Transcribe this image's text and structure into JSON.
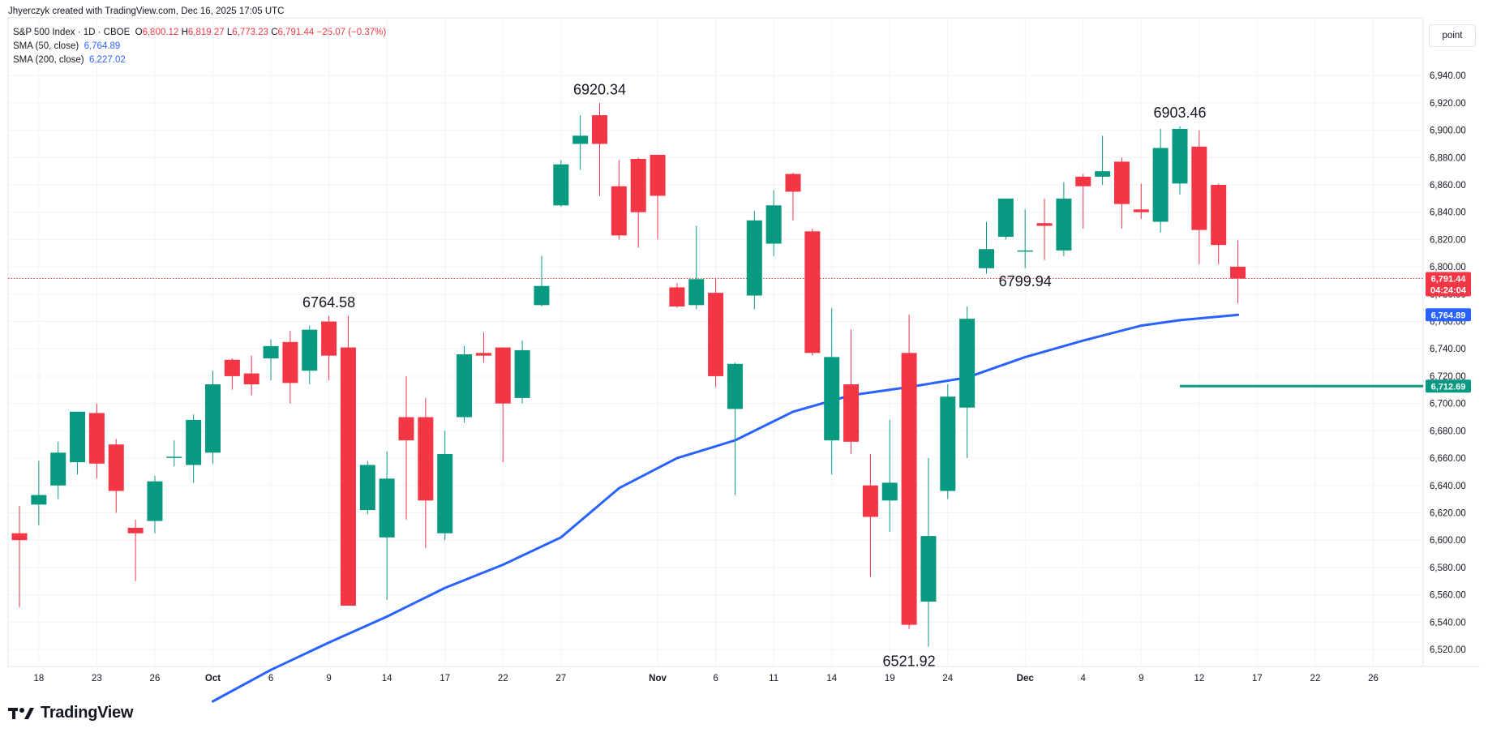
{
  "header": {
    "credit": "Jhyerczyk created with TradingView.com, Dec 16, 2025 17:05 UTC",
    "symbol": "S&P 500 Index · 1D · CBOE",
    "ohlc": {
      "open_label": "O",
      "open": "6,800.12",
      "high_label": "H",
      "high": "6,819.27",
      "low_label": "L",
      "low": "6,773.23",
      "close_label": "C",
      "close": "6,791.44",
      "change": "−25.07 (−0.37%)"
    },
    "sma50": {
      "label": "SMA (50, close)",
      "value": "6,764.89"
    },
    "sma200": {
      "label": "SMA (200, close)",
      "value": "6,227.02"
    }
  },
  "scale_mode_button": "point",
  "brand": "TradingView",
  "colors": {
    "up": "#089981",
    "down": "#f23645",
    "sma50": "#2962ff",
    "support_line": "#089981",
    "grid": "#f0f3fa"
  },
  "chart_data": {
    "type": "candlestick",
    "y_axis_position": "right",
    "ylim": [
      6482,
      6952
    ],
    "y_ticks": [
      "6,500.00",
      "6,520.00",
      "6,540.00",
      "6,560.00",
      "6,580.00",
      "6,600.00",
      "6,620.00",
      "6,640.00",
      "6,660.00",
      "6,680.00",
      "6,700.00",
      "6,720.00",
      "6,740.00",
      "6,760.00",
      "6,780.00",
      "6,800.00",
      "6,820.00",
      "6,840.00",
      "6,860.00",
      "6,880.00",
      "6,900.00",
      "6,920.00",
      "6,940.00"
    ],
    "x_ticks": [
      {
        "index": 1,
        "label": "18"
      },
      {
        "index": 4,
        "label": "23"
      },
      {
        "index": 7,
        "label": "26"
      },
      {
        "index": 10,
        "label": "Oct"
      },
      {
        "index": 13,
        "label": "6"
      },
      {
        "index": 16,
        "label": "9"
      },
      {
        "index": 19,
        "label": "14"
      },
      {
        "index": 22,
        "label": "17"
      },
      {
        "index": 25,
        "label": "22"
      },
      {
        "index": 28,
        "label": "27"
      },
      {
        "index": 33,
        "label": "Nov"
      },
      {
        "index": 36,
        "label": "6"
      },
      {
        "index": 39,
        "label": "11"
      },
      {
        "index": 42,
        "label": "14"
      },
      {
        "index": 45,
        "label": "19"
      },
      {
        "index": 48,
        "label": "24"
      },
      {
        "index": 52,
        "label": "Dec"
      },
      {
        "index": 55,
        "label": "4"
      },
      {
        "index": 58,
        "label": "9"
      },
      {
        "index": 61,
        "label": "12"
      },
      {
        "index": 64,
        "label": "17"
      },
      {
        "index": 67,
        "label": "22"
      },
      {
        "index": 70,
        "label": "26"
      }
    ],
    "candles": [
      {
        "o": 6605,
        "h": 6625,
        "l": 6551,
        "c": 6600
      },
      {
        "o": 6626,
        "h": 6658,
        "l": 6611,
        "c": 6633
      },
      {
        "o": 6640,
        "h": 6672,
        "l": 6630,
        "c": 6664
      },
      {
        "o": 6657,
        "h": 6694,
        "l": 6648,
        "c": 6694
      },
      {
        "o": 6693,
        "h": 6700,
        "l": 6645,
        "c": 6656
      },
      {
        "o": 6670,
        "h": 6674,
        "l": 6620,
        "c": 6636
      },
      {
        "o": 6609,
        "h": 6615,
        "l": 6570,
        "c": 6605
      },
      {
        "o": 6614,
        "h": 6647,
        "l": 6605,
        "c": 6643
      },
      {
        "o": 6661,
        "h": 6673,
        "l": 6654,
        "c": 6661
      },
      {
        "o": 6655,
        "h": 6692,
        "l": 6642,
        "c": 6688
      },
      {
        "o": 6664,
        "h": 6724,
        "l": 6656,
        "c": 6714
      },
      {
        "o": 6732,
        "h": 6733,
        "l": 6710,
        "c": 6720
      },
      {
        "o": 6722,
        "h": 6735,
        "l": 6706,
        "c": 6714
      },
      {
        "o": 6733,
        "h": 6747,
        "l": 6717,
        "c": 6742
      },
      {
        "o": 6745,
        "h": 6753,
        "l": 6700,
        "c": 6715
      },
      {
        "o": 6724,
        "h": 6757,
        "l": 6714,
        "c": 6754
      },
      {
        "o": 6760,
        "h": 6764,
        "l": 6717,
        "c": 6735
      },
      {
        "o": 6741,
        "h": 6764,
        "l": 6552,
        "c": 6552
      },
      {
        "o": 6622,
        "h": 6658,
        "l": 6619,
        "c": 6655
      },
      {
        "o": 6602,
        "h": 6665,
        "l": 6556,
        "c": 6645
      },
      {
        "o": 6690,
        "h": 6720,
        "l": 6615,
        "c": 6673
      },
      {
        "o": 6690,
        "h": 6704,
        "l": 6594,
        "c": 6629
      },
      {
        "o": 6605,
        "h": 6680,
        "l": 6600,
        "c": 6663
      },
      {
        "o": 6690,
        "h": 6742,
        "l": 6686,
        "c": 6736
      },
      {
        "o": 6737,
        "h": 6752,
        "l": 6730,
        "c": 6735
      },
      {
        "o": 6741,
        "h": 6741,
        "l": 6657,
        "c": 6700
      },
      {
        "o": 6704,
        "h": 6746,
        "l": 6700,
        "c": 6739
      },
      {
        "o": 6772,
        "h": 6808,
        "l": 6771,
        "c": 6786
      },
      {
        "o": 6845,
        "h": 6878,
        "l": 6844,
        "c": 6875
      },
      {
        "o": 6890,
        "h": 6911,
        "l": 6871,
        "c": 6896
      },
      {
        "o": 6911,
        "h": 6920,
        "l": 6852,
        "c": 6890
      },
      {
        "o": 6859,
        "h": 6878,
        "l": 6820,
        "c": 6823
      },
      {
        "o": 6879,
        "h": 6880,
        "l": 6814,
        "c": 6840
      },
      {
        "o": 6882,
        "h": 6882,
        "l": 6820,
        "c": 6852
      },
      {
        "o": 6785,
        "h": 6788,
        "l": 6770,
        "c": 6771
      },
      {
        "o": 6772,
        "h": 6830,
        "l": 6769,
        "c": 6791
      },
      {
        "o": 6781,
        "h": 6792,
        "l": 6712,
        "c": 6720
      },
      {
        "o": 6696,
        "h": 6730,
        "l": 6633,
        "c": 6729
      },
      {
        "o": 6779,
        "h": 6841,
        "l": 6769,
        "c": 6834
      },
      {
        "o": 6817,
        "h": 6856,
        "l": 6808,
        "c": 6845
      },
      {
        "o": 6868,
        "h": 6869,
        "l": 6834,
        "c": 6855
      },
      {
        "o": 6826,
        "h": 6828,
        "l": 6735,
        "c": 6737
      },
      {
        "o": 6673,
        "h": 6770,
        "l": 6648,
        "c": 6734
      },
      {
        "o": 6714,
        "h": 6754,
        "l": 6663,
        "c": 6672
      },
      {
        "o": 6640,
        "h": 6663,
        "l": 6573,
        "c": 6617
      },
      {
        "o": 6629,
        "h": 6688,
        "l": 6606,
        "c": 6642
      },
      {
        "o": 6737,
        "h": 6765,
        "l": 6535,
        "c": 6538
      },
      {
        "o": 6555,
        "h": 6660,
        "l": 6522,
        "c": 6603
      },
      {
        "o": 6636,
        "h": 6714,
        "l": 6630,
        "c": 6705
      },
      {
        "o": 6697,
        "h": 6771,
        "l": 6660,
        "c": 6762
      },
      {
        "o": 6799,
        "h": 6833,
        "l": 6795,
        "c": 6813
      },
      {
        "o": 6822,
        "h": 6850,
        "l": 6820,
        "c": 6850
      },
      {
        "o": 6812,
        "h": 6842,
        "l": 6799,
        "c": 6812
      },
      {
        "o": 6832,
        "h": 6850,
        "l": 6805,
        "c": 6830
      },
      {
        "o": 6812,
        "h": 6862,
        "l": 6808,
        "c": 6850
      },
      {
        "o": 6866,
        "h": 6868,
        "l": 6828,
        "c": 6859
      },
      {
        "o": 6866,
        "h": 6896,
        "l": 6860,
        "c": 6870
      },
      {
        "o": 6877,
        "h": 6880,
        "l": 6828,
        "c": 6846
      },
      {
        "o": 6842,
        "h": 6861,
        "l": 6835,
        "c": 6840
      },
      {
        "o": 6833,
        "h": 6901,
        "l": 6825,
        "c": 6887
      },
      {
        "o": 6861,
        "h": 6903,
        "l": 6853,
        "c": 6901
      },
      {
        "o": 6888,
        "h": 6900,
        "l": 6802,
        "c": 6827
      },
      {
        "o": 6860,
        "h": 6861,
        "l": 6802,
        "c": 6816
      },
      {
        "o": 6800.12,
        "h": 6819.27,
        "l": 6773.23,
        "c": 6791.44
      }
    ],
    "sma50": [
      {
        "index": 10,
        "value": 6482
      },
      {
        "index": 13,
        "value": 6505
      },
      {
        "index": 16,
        "value": 6525
      },
      {
        "index": 19,
        "value": 6544
      },
      {
        "index": 22,
        "value": 6565
      },
      {
        "index": 25,
        "value": 6582
      },
      {
        "index": 28,
        "value": 6602
      },
      {
        "index": 31,
        "value": 6638
      },
      {
        "index": 34,
        "value": 6660
      },
      {
        "index": 37,
        "value": 6673
      },
      {
        "index": 40,
        "value": 6694
      },
      {
        "index": 43,
        "value": 6706
      },
      {
        "index": 46,
        "value": 6712
      },
      {
        "index": 49,
        "value": 6719
      },
      {
        "index": 52,
        "value": 6734
      },
      {
        "index": 55,
        "value": 6746
      },
      {
        "index": 58,
        "value": 6757
      },
      {
        "index": 60,
        "value": 6761
      },
      {
        "index": 63,
        "value": 6764.89
      }
    ],
    "support_level": {
      "value": 6712.69,
      "from_index": 60
    },
    "current_price": {
      "value": 6791.44,
      "label": "6,791.44",
      "countdown": "04:24:04"
    },
    "sma50_badge": {
      "value": 6764.89,
      "label": "6,764.89"
    },
    "support_badge": {
      "value": 6712.69,
      "label": "6,712.69"
    },
    "annotations": [
      {
        "text": "6764.58",
        "index": 16,
        "value": 6764.58,
        "place": "above"
      },
      {
        "text": "6920.34",
        "index": 30,
        "value": 6920.34,
        "place": "above"
      },
      {
        "text": "6521.92",
        "index": 46,
        "value": 6521.92,
        "place": "below"
      },
      {
        "text": "6799.94",
        "index": 52,
        "value": 6799.94,
        "place": "below"
      },
      {
        "text": "6903.46",
        "index": 60,
        "value": 6903.46,
        "place": "above"
      }
    ]
  }
}
